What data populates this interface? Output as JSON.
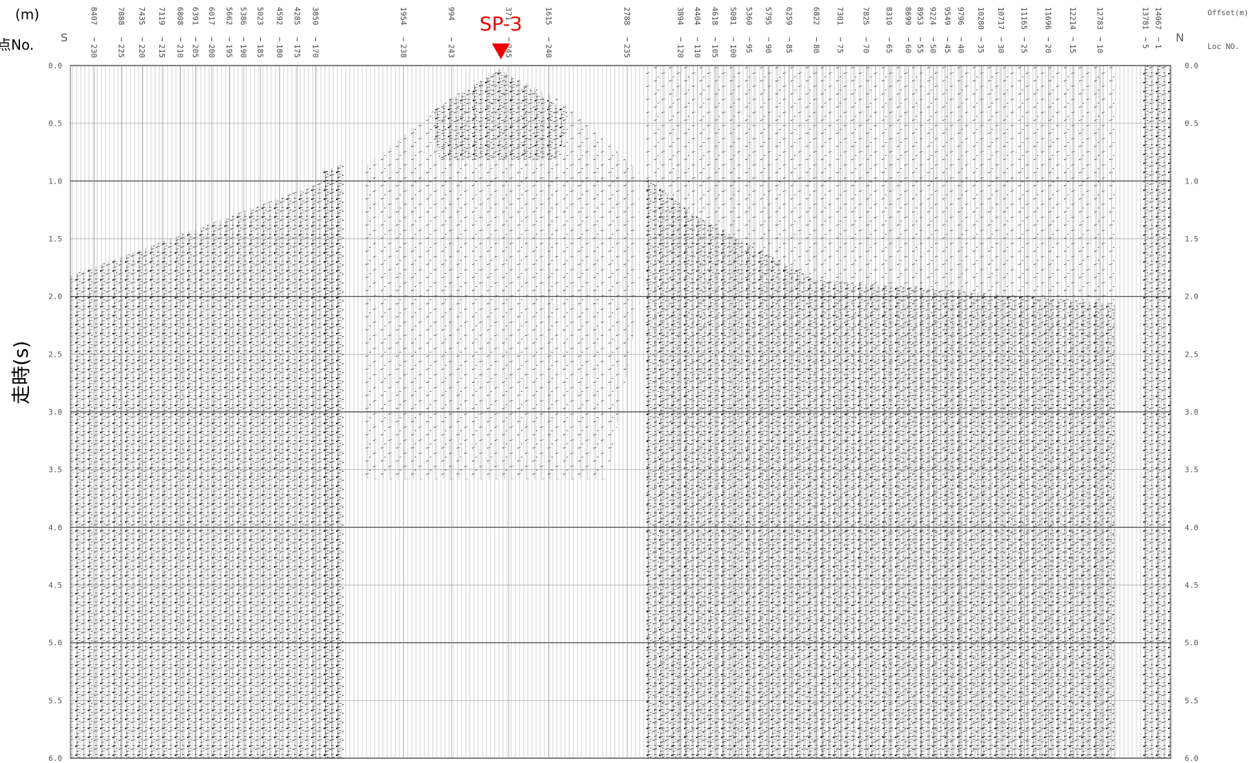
{
  "header": {
    "offset_unit": "(m)",
    "loc_label": "点No.",
    "south": "S",
    "north": "N",
    "offset_title": "Offset(m)",
    "loc_title": "Loc NO.",
    "shot": "SP-3"
  },
  "chart_data": {
    "type": "seismic-gather",
    "ylabel": "走時(s)",
    "ylim": [
      0,
      6
    ],
    "yticks": [
      {
        "value": 0,
        "label": "0.0"
      },
      {
        "value": 0.5,
        "label": "0.5"
      },
      {
        "value": 1,
        "label": "1.0"
      },
      {
        "value": 1.5,
        "label": "1.5"
      },
      {
        "value": 2,
        "label": "2.0"
      },
      {
        "value": 2.5,
        "label": "2.5"
      },
      {
        "value": 3,
        "label": "3.0"
      },
      {
        "value": 3.5,
        "label": "3.5"
      },
      {
        "value": 4,
        "label": "4.0"
      },
      {
        "value": 4.5,
        "label": "4.5"
      },
      {
        "value": 5,
        "label": "5.0"
      },
      {
        "value": 5.5,
        "label": "5.5"
      },
      {
        "value": 6,
        "label": "6.0"
      }
    ],
    "traces": [
      {
        "offset": 8407,
        "loc": 230
      },
      {
        "offset": 7888,
        "loc": 225
      },
      {
        "offset": 7435,
        "loc": 220
      },
      {
        "offset": 7119,
        "loc": 215
      },
      {
        "offset": 6808,
        "loc": 210
      },
      {
        "offset": 6391,
        "loc": 205
      },
      {
        "offset": 6017,
        "loc": 200
      },
      {
        "offset": 5662,
        "loc": 195
      },
      {
        "offset": 5386,
        "loc": 190
      },
      {
        "offset": 5023,
        "loc": 185
      },
      {
        "offset": 4592,
        "loc": 180
      },
      {
        "offset": 4285,
        "loc": 175
      },
      {
        "offset": 3850,
        "loc": 170
      },
      {
        "offset": 1954,
        "loc": 238
      },
      {
        "offset": 994,
        "loc": 243
      },
      {
        "offset": 371,
        "loc": 245
      },
      {
        "offset": 1615,
        "loc": 240
      },
      {
        "offset": 2788,
        "loc": 235
      },
      {
        "offset": 3894,
        "loc": 120
      },
      {
        "offset": 4404,
        "loc": 110
      },
      {
        "offset": 4618,
        "loc": 105
      },
      {
        "offset": 5081,
        "loc": 100
      },
      {
        "offset": 5360,
        "loc": 95
      },
      {
        "offset": 5795,
        "loc": 90
      },
      {
        "offset": 6259,
        "loc": 85
      },
      {
        "offset": 6822,
        "loc": 80
      },
      {
        "offset": 7301,
        "loc": 75
      },
      {
        "offset": 7825,
        "loc": 70
      },
      {
        "offset": 8310,
        "loc": 65
      },
      {
        "offset": 8699,
        "loc": 60
      },
      {
        "offset": 8953,
        "loc": 55
      },
      {
        "offset": 9224,
        "loc": 50
      },
      {
        "offset": 9549,
        "loc": 45
      },
      {
        "offset": 9796,
        "loc": 40
      },
      {
        "offset": 10280,
        "loc": 35
      },
      {
        "offset": 10717,
        "loc": 30
      },
      {
        "offset": 11165,
        "loc": 25
      },
      {
        "offset": 11696,
        "loc": 20
      },
      {
        "offset": 12214,
        "loc": 15
      },
      {
        "offset": 12783,
        "loc": 10
      },
      {
        "offset": 13781,
        "loc": 5
      },
      {
        "offset": 14067,
        "loc": 1
      }
    ]
  }
}
